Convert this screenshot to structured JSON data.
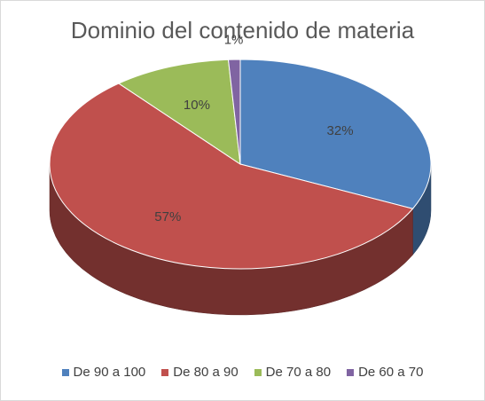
{
  "chart_data": {
    "type": "pie",
    "title": "Dominio del contenido de materia",
    "categories": [
      "De 90 a 100",
      "De 80 a 90",
      "De 70 a 80",
      "De 60 a 70"
    ],
    "values": [
      32,
      57,
      10,
      1
    ],
    "labels": [
      "32%",
      "57%",
      "10%",
      "1%"
    ],
    "colors": [
      "#4f81bd",
      "#c0504d",
      "#9bbb59",
      "#8064a2"
    ],
    "legend_position": "bottom",
    "style": "3d"
  }
}
